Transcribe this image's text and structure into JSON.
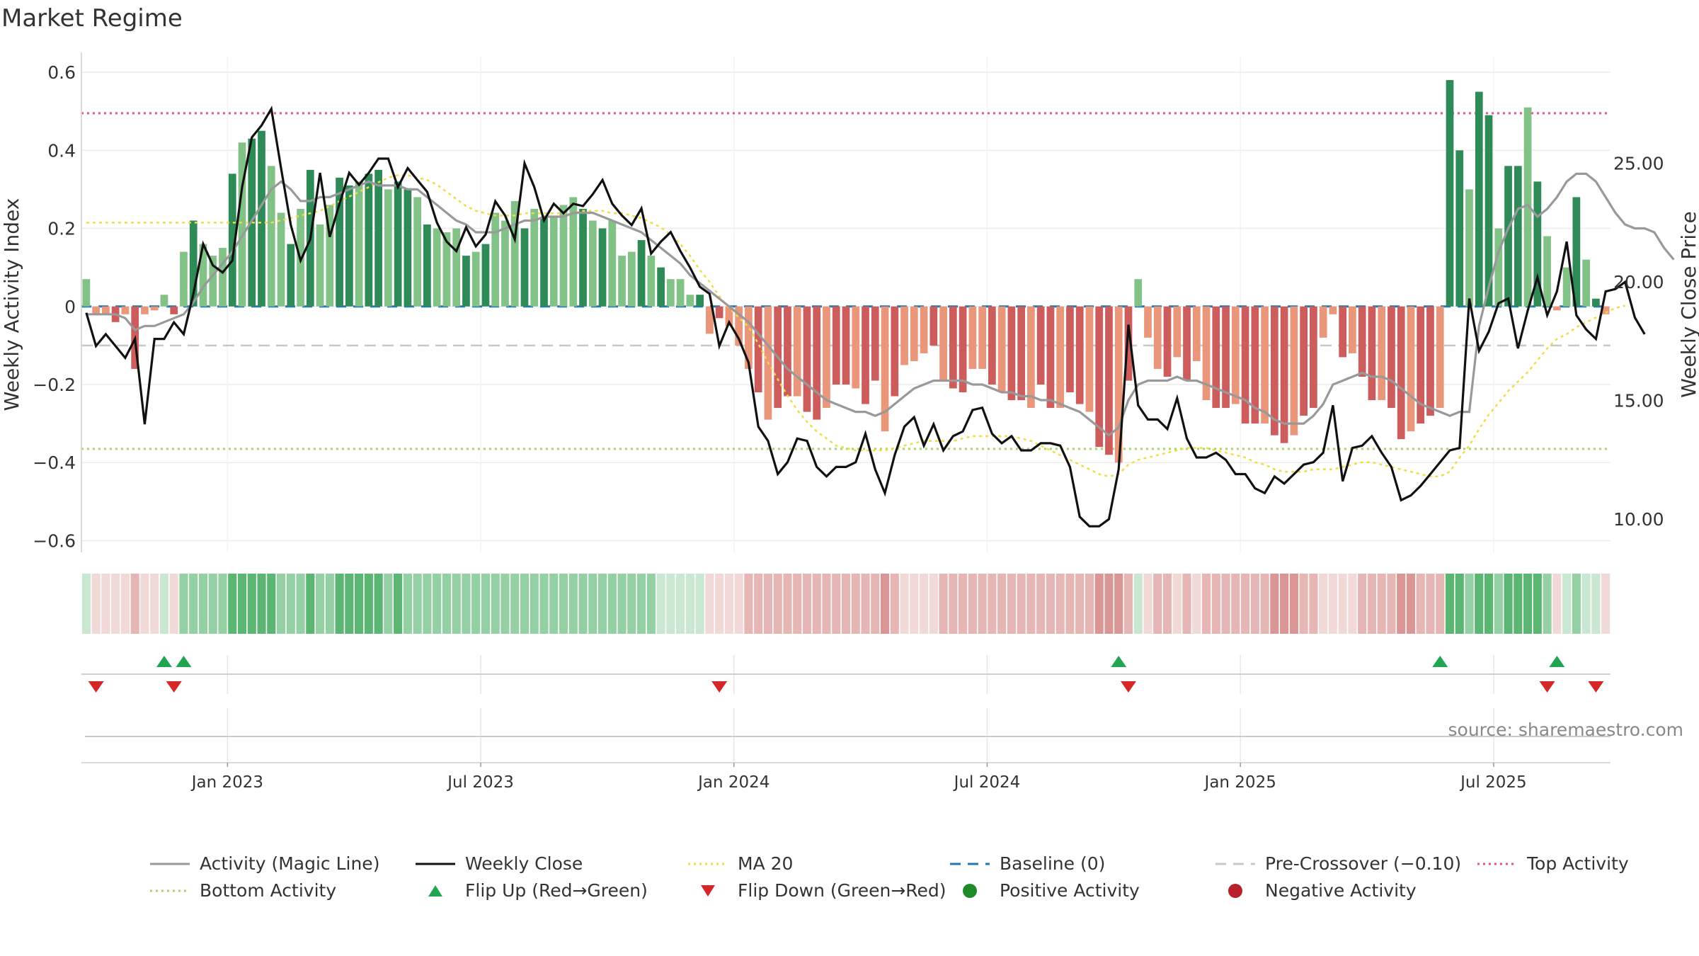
{
  "title": "Market Regime",
  "source": "source: sharemaestro.com",
  "colors": {
    "pos_dark": "#2e8b57",
    "pos_light": "#82c287",
    "neg_dark": "#cd5c5c",
    "neg_light": "#e9967a",
    "close": "#111111",
    "magic": "#999999",
    "ma": "#f0dc46",
    "baseline": "#1f77b4",
    "pre": "#c8c8c8",
    "top": "#e8557f",
    "bottom": "#a6d76a",
    "up": "#22a552",
    "down": "#d62728",
    "pos_dot": "#1e8a2a",
    "neg_dot": "#b8202a"
  },
  "chart_data": {
    "type": "bar",
    "title": "Market Regime",
    "ylabel": "Weekly Activity Index",
    "y2label": "Weekly Close Price",
    "ylim": [
      -0.63,
      0.64
    ],
    "y2lim": [
      8.6,
      29.5
    ],
    "yticks": [
      "0.6",
      "0.4",
      "0.2",
      "0",
      "−0.2",
      "−0.4",
      "−0.6"
    ],
    "yticks_values": [
      0.6,
      0.4,
      0.2,
      0,
      -0.2,
      -0.4,
      -0.6
    ],
    "y2ticks": [
      "25.00",
      "20.00",
      "15.00",
      "10.00"
    ],
    "y2ticks_values": [
      25,
      20,
      15,
      10
    ],
    "xticks": [
      "Jan 2023",
      "Jul 2023",
      "Jan 2024",
      "Jul 2024",
      "Jan 2025",
      "Jul 2025"
    ],
    "xticks_week": [
      15,
      41,
      67,
      93,
      119,
      145
    ],
    "weeks": 157,
    "reference_lines": {
      "baseline": 0,
      "pre_crossover": -0.1,
      "top_activity": 0.495,
      "bottom_activity": -0.365
    },
    "activity": [
      0.07,
      -0.02,
      -0.02,
      -0.04,
      -0.02,
      -0.16,
      -0.02,
      -0.01,
      0.03,
      -0.02,
      0.14,
      0.22,
      0.16,
      0.13,
      0.15,
      0.34,
      0.42,
      0.43,
      0.45,
      0.36,
      0.24,
      0.16,
      0.25,
      0.35,
      0.21,
      0.26,
      0.33,
      0.31,
      0.32,
      0.34,
      0.35,
      0.3,
      0.32,
      0.3,
      0.28,
      0.21,
      0.2,
      0.19,
      0.2,
      0.13,
      0.14,
      0.16,
      0.24,
      0.22,
      0.27,
      0.2,
      0.25,
      0.23,
      0.23,
      0.26,
      0.28,
      0.25,
      0.22,
      0.2,
      0.22,
      0.13,
      0.14,
      0.17,
      0.13,
      0.1,
      0.07,
      0.07,
      0.03,
      0.03,
      -0.07,
      -0.03,
      -0.05,
      -0.1,
      -0.16,
      -0.22,
      -0.29,
      -0.26,
      -0.23,
      -0.23,
      -0.27,
      -0.29,
      -0.26,
      -0.2,
      -0.2,
      -0.21,
      -0.25,
      -0.19,
      -0.32,
      -0.23,
      -0.15,
      -0.14,
      -0.12,
      -0.1,
      -0.19,
      -0.21,
      -0.22,
      -0.16,
      -0.16,
      -0.2,
      -0.22,
      -0.24,
      -0.24,
      -0.26,
      -0.2,
      -0.26,
      -0.26,
      -0.22,
      -0.25,
      -0.27,
      -0.36,
      -0.38,
      -0.4,
      -0.19,
      0.07,
      -0.08,
      -0.16,
      -0.18,
      -0.13,
      -0.19,
      -0.14,
      -0.24,
      -0.26,
      -0.26,
      -0.25,
      -0.3,
      -0.3,
      -0.3,
      -0.33,
      -0.35,
      -0.33,
      -0.28,
      -0.26,
      -0.08,
      -0.02,
      -0.13,
      -0.12,
      -0.18,
      -0.24,
      -0.24,
      -0.26,
      -0.34,
      -0.32,
      -0.3,
      -0.28,
      -0.26,
      0.58,
      0.4,
      0.3,
      0.55,
      0.49,
      0.2,
      0.36,
      0.36,
      0.51,
      0.32,
      0.18,
      -0.01,
      0.1,
      0.28,
      0.12,
      0.02,
      -0.02
    ],
    "close": [
      18.7,
      17.3,
      17.8,
      17.3,
      16.8,
      17.6,
      14.0,
      17.6,
      17.6,
      18.3,
      17.8,
      19.5,
      21.6,
      20.7,
      20.4,
      20.9,
      24.0,
      26.1,
      26.6,
      27.3,
      24.8,
      22.4,
      20.9,
      21.8,
      24.6,
      21.9,
      23.3,
      24.6,
      24.1,
      24.6,
      25.2,
      25.2,
      24.0,
      24.8,
      24.3,
      23.8,
      22.5,
      21.7,
      21.3,
      22.3,
      21.5,
      22.0,
      23.4,
      22.8,
      21.8,
      25.0,
      24.0,
      22.6,
      23.3,
      22.9,
      23.3,
      23.2,
      23.7,
      24.3,
      23.3,
      22.8,
      22.4,
      23.1,
      21.2,
      21.7,
      22.1,
      21.3,
      20.6,
      19.8,
      19.5,
      17.3,
      18.3,
      17.6,
      16.6,
      13.9,
      13.3,
      11.9,
      12.4,
      13.4,
      13.3,
      12.2,
      11.8,
      12.2,
      12.2,
      12.4,
      13.6,
      12.1,
      11.1,
      12.7,
      13.9,
      14.3,
      13.1,
      14.0,
      12.9,
      13.5,
      13.7,
      14.6,
      14.7,
      13.6,
      13.2,
      13.5,
      12.9,
      12.9,
      13.2,
      13.2,
      13.1,
      12.2,
      10.1,
      9.7,
      9.7,
      10.0,
      12.1,
      18.2,
      14.8,
      14.2,
      14.2,
      13.8,
      15.1,
      13.4,
      12.6,
      12.6,
      12.8,
      12.5,
      11.9,
      11.9,
      11.3,
      11.1,
      11.8,
      11.5,
      11.9,
      12.3,
      12.4,
      12.8,
      14.8,
      11.6,
      13.0,
      13.1,
      13.5,
      12.8,
      12.2,
      10.8,
      11.0,
      11.4,
      11.9,
      12.4,
      12.9,
      13.0,
      19.3,
      17.1,
      17.9,
      19.1,
      19.3,
      17.2,
      18.8,
      20.2,
      18.6,
      19.6,
      21.7,
      18.6,
      18.0,
      17.6,
      19.6,
      19.7,
      20.0,
      18.5,
      17.8
    ],
    "magic": [
      -0.02,
      -0.02,
      -0.02,
      -0.02,
      -0.03,
      -0.06,
      -0.05,
      -0.05,
      -0.04,
      -0.03,
      -0.02,
      0.01,
      0.05,
      0.08,
      0.11,
      0.14,
      0.18,
      0.22,
      0.26,
      0.3,
      0.32,
      0.3,
      0.27,
      0.27,
      0.28,
      0.28,
      0.29,
      0.3,
      0.31,
      0.32,
      0.31,
      0.31,
      0.31,
      0.3,
      0.3,
      0.28,
      0.26,
      0.24,
      0.22,
      0.21,
      0.19,
      0.19,
      0.19,
      0.2,
      0.21,
      0.22,
      0.22,
      0.23,
      0.23,
      0.23,
      0.24,
      0.24,
      0.24,
      0.23,
      0.22,
      0.21,
      0.2,
      0.19,
      0.17,
      0.15,
      0.13,
      0.11,
      0.08,
      0.06,
      0.04,
      0.02,
      0.0,
      -0.02,
      -0.04,
      -0.07,
      -0.1,
      -0.13,
      -0.16,
      -0.18,
      -0.2,
      -0.22,
      -0.24,
      -0.25,
      -0.26,
      -0.27,
      -0.27,
      -0.28,
      -0.27,
      -0.25,
      -0.23,
      -0.21,
      -0.2,
      -0.19,
      -0.19,
      -0.19,
      -0.19,
      -0.2,
      -0.2,
      -0.21,
      -0.22,
      -0.22,
      -0.23,
      -0.23,
      -0.24,
      -0.24,
      -0.25,
      -0.26,
      -0.27,
      -0.29,
      -0.31,
      -0.33,
      -0.31,
      -0.24,
      -0.2,
      -0.19,
      -0.19,
      -0.19,
      -0.18,
      -0.19,
      -0.19,
      -0.2,
      -0.21,
      -0.22,
      -0.23,
      -0.24,
      -0.26,
      -0.27,
      -0.29,
      -0.3,
      -0.3,
      -0.3,
      -0.28,
      -0.25,
      -0.2,
      -0.19,
      -0.18,
      -0.17,
      -0.18,
      -0.18,
      -0.19,
      -0.21,
      -0.23,
      -0.25,
      -0.26,
      -0.27,
      -0.28,
      -0.27,
      -0.27,
      -0.05,
      0.05,
      0.14,
      0.2,
      0.25,
      0.26,
      0.23,
      0.25,
      0.28,
      0.32,
      0.34,
      0.34,
      0.32,
      0.28,
      0.24,
      0.21,
      0.2,
      0.2,
      0.19,
      0.15,
      0.12
    ],
    "ma20": [
      22.5,
      22.5,
      22.5,
      22.5,
      22.5,
      22.5,
      22.5,
      22.5,
      22.5,
      22.5,
      22.5,
      22.5,
      22.5,
      22.5,
      22.5,
      22.5,
      22.5,
      22.5,
      22.5,
      22.5,
      22.6,
      22.7,
      22.8,
      22.9,
      23.0,
      23.2,
      23.4,
      23.6,
      23.8,
      24.0,
      24.2,
      24.4,
      24.5,
      24.5,
      24.4,
      24.3,
      24.1,
      23.8,
      23.5,
      23.2,
      23.0,
      22.9,
      22.8,
      22.8,
      22.8,
      22.9,
      22.9,
      22.9,
      22.9,
      22.9,
      22.9,
      23.0,
      23.0,
      23.0,
      22.9,
      22.9,
      22.8,
      22.7,
      22.5,
      22.3,
      22.0,
      21.6,
      21.1,
      20.5,
      20.0,
      19.4,
      18.9,
      18.5,
      18.1,
      17.4,
      16.6,
      15.9,
      15.2,
      14.6,
      14.1,
      13.7,
      13.4,
      13.1,
      13.0,
      12.9,
      12.9,
      12.9,
      12.9,
      13.0,
      13.1,
      13.2,
      13.3,
      13.3,
      13.3,
      13.3,
      13.4,
      13.5,
      13.5,
      13.5,
      13.5,
      13.5,
      13.4,
      13.3,
      13.1,
      12.9,
      12.7,
      12.5,
      12.3,
      12.1,
      11.9,
      11.8,
      11.9,
      12.3,
      12.5,
      12.6,
      12.7,
      12.8,
      12.9,
      13.0,
      13.0,
      13.0,
      12.9,
      12.8,
      12.7,
      12.6,
      12.4,
      12.3,
      12.1,
      12.0,
      12.0,
      12.0,
      12.1,
      12.1,
      12.1,
      12.2,
      12.3,
      12.4,
      12.4,
      12.3,
      12.2,
      12.1,
      12.0,
      11.9,
      11.8,
      11.8,
      12.0,
      12.6,
      13.1,
      13.8,
      14.4,
      14.9,
      15.4,
      15.8,
      16.2,
      16.7,
      17.2,
      17.6,
      17.8,
      18.1,
      18.3,
      18.5,
      18.7,
      18.9,
      19.0
    ],
    "flip_up_weeks": [
      8,
      10,
      106,
      139,
      151
    ],
    "flip_down_weeks": [
      1,
      9,
      65,
      107,
      150,
      155
    ]
  },
  "legend": [
    {
      "label": "Activity (Magic Line)",
      "kind": "line",
      "color": "#999999"
    },
    {
      "label": "Weekly Close",
      "kind": "line",
      "color": "#111111"
    },
    {
      "label": "MA 20",
      "kind": "dotted",
      "color": "#f0dc46"
    },
    {
      "label": "Baseline (0)",
      "kind": "dashed",
      "color": "#1f77b4"
    },
    {
      "label": "Pre-Crossover (−0.10)",
      "kind": "dashed",
      "color": "#c8c8c8"
    },
    {
      "label": "Top Activity",
      "kind": "dotted",
      "color": "#e8557f"
    },
    {
      "label": "Bottom Activity",
      "kind": "dotted",
      "color": "#a6d76a"
    },
    {
      "label": "Flip Up (Red→Green)",
      "kind": "tri-up",
      "color": "#22a552"
    },
    {
      "label": "Flip Down (Green→Red)",
      "kind": "tri-down",
      "color": "#d62728"
    },
    {
      "label": "Positive Activity",
      "kind": "dot",
      "color": "#1e8a2a"
    },
    {
      "label": "Negative Activity",
      "kind": "dot",
      "color": "#b8202a"
    }
  ]
}
